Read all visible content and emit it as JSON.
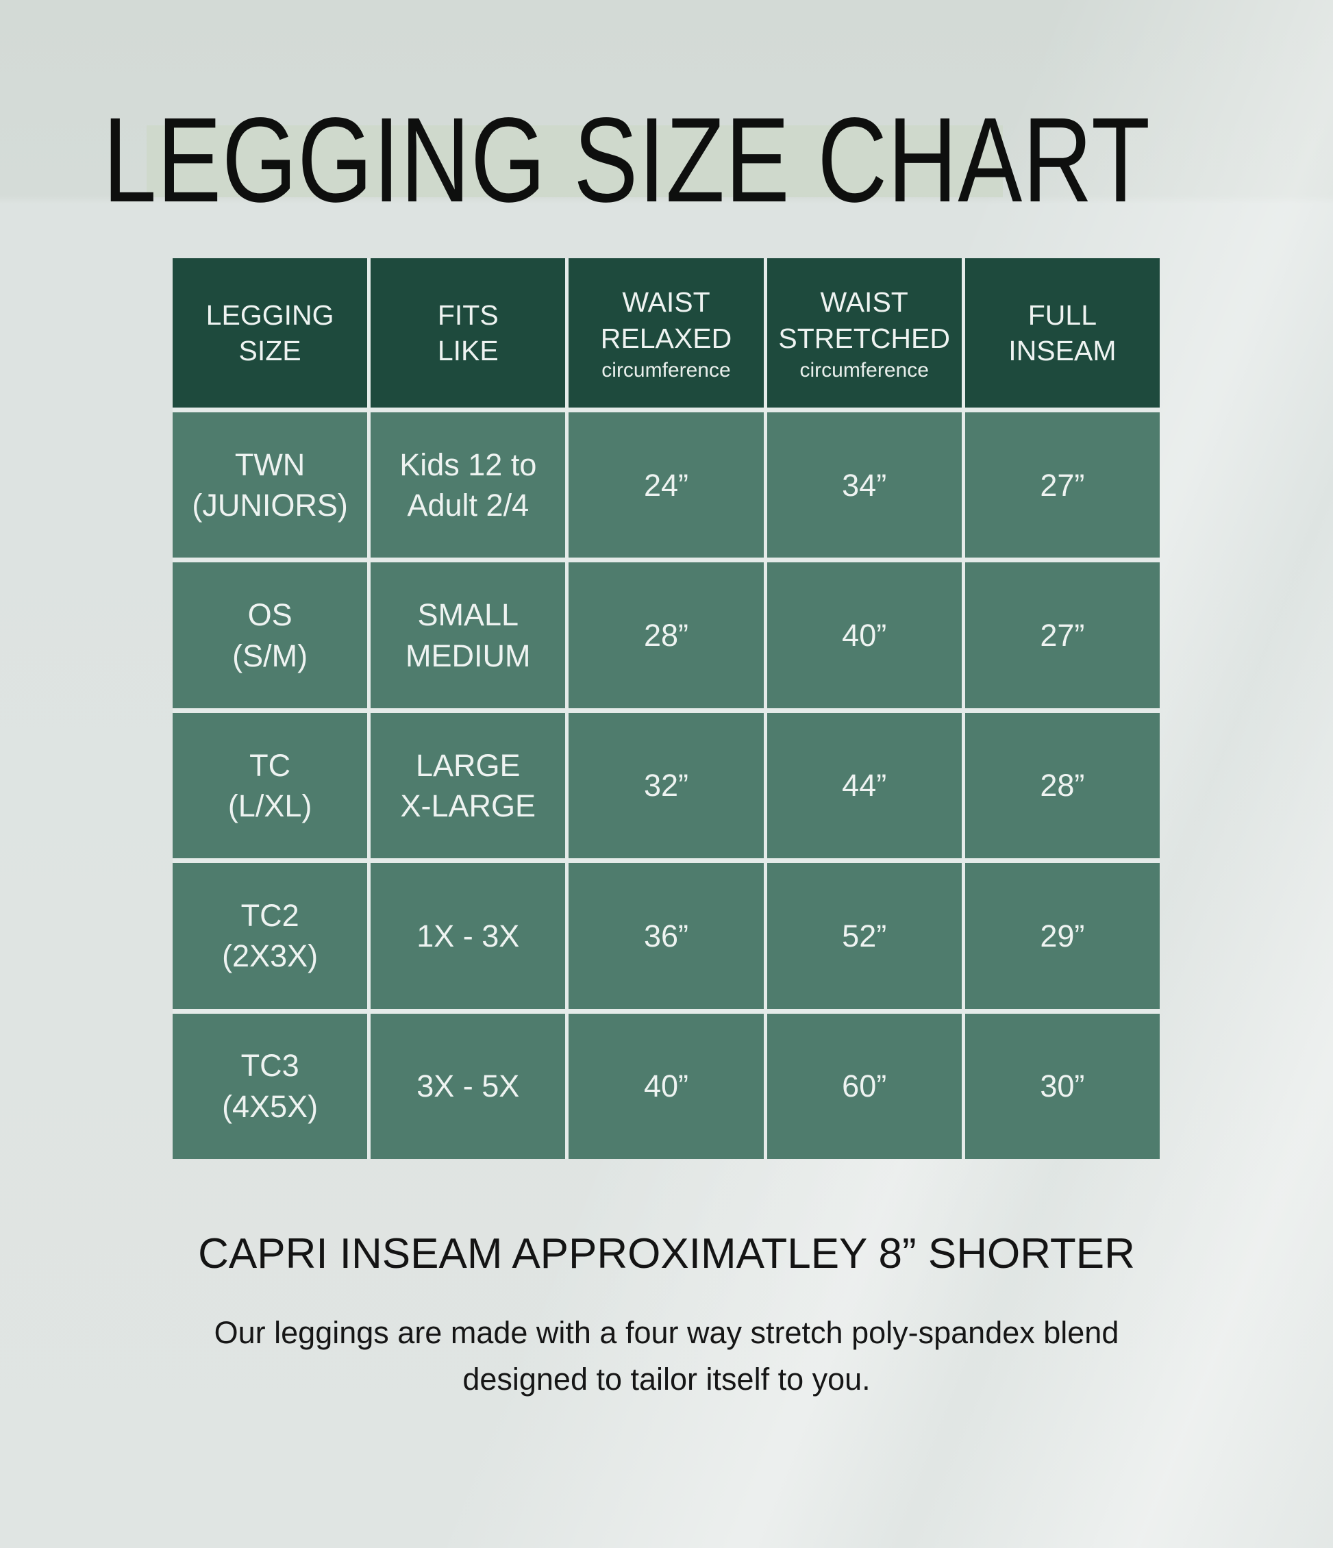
{
  "title": "LEGGING SIZE CHART",
  "colors": {
    "header_green": "#1e4a3d",
    "cell_green": "#4f7c6d",
    "grid_line": "#e5ebe9",
    "title_highlight": "#cfd9cc",
    "page_background": "#dde3e1",
    "light_text": "#eef3f1",
    "dark_text": "#141414"
  },
  "table": {
    "headers": [
      {
        "label": "LEGGING\nSIZE",
        "sub": ""
      },
      {
        "label": "FITS\nLIKE",
        "sub": ""
      },
      {
        "label": "WAIST\nRELAXED",
        "sub": "circumference"
      },
      {
        "label": "WAIST\nSTRETCHED",
        "sub": "circumference"
      },
      {
        "label": "FULL\nINSEAM",
        "sub": ""
      }
    ],
    "rows": [
      [
        "TWN\n(JUNIORS)",
        "Kids 12 to\nAdult 2/4",
        "24”",
        "34”",
        "27”"
      ],
      [
        "OS\n(S/M)",
        "SMALL\nMEDIUM",
        "28”",
        "40”",
        "27”"
      ],
      [
        "TC\n(L/XL)",
        "LARGE\nX-LARGE",
        "32”",
        "44”",
        "28”"
      ],
      [
        "TC2\n(2X3X)",
        "1X - 3X",
        "36”",
        "52”",
        "29”"
      ],
      [
        "TC3\n(4X5X)",
        "3X - 5X",
        "40”",
        "60”",
        "30”"
      ]
    ]
  },
  "notes": {
    "capri": "CAPRI INSEAM APPROXIMATLEY 8” SHORTER",
    "fabric": "Our leggings are made with a four way stretch poly-spandex blend\ndesigned to tailor itself to you."
  },
  "chart_data": {
    "type": "table",
    "title": "LEGGING SIZE CHART",
    "columns": [
      "LEGGING SIZE",
      "FITS LIKE",
      "WAIST RELAXED circumference",
      "WAIST STRETCHED circumference",
      "FULL INSEAM"
    ],
    "rows": [
      [
        "TWN (JUNIORS)",
        "Kids 12 to Adult 2/4",
        "24”",
        "34”",
        "27”"
      ],
      [
        "OS (S/M)",
        "SMALL MEDIUM",
        "28”",
        "40”",
        "27”"
      ],
      [
        "TC (L/XL)",
        "LARGE X-LARGE",
        "32”",
        "44”",
        "28”"
      ],
      [
        "TC2 (2X3X)",
        "1X - 3X",
        "36”",
        "52”",
        "29”"
      ],
      [
        "TC3 (4X5X)",
        "3X - 5X",
        "40”",
        "60”",
        "30”"
      ]
    ],
    "notes": [
      "CAPRI INSEAM APPROXIMATLEY 8” SHORTER",
      "Our leggings are made with a four way stretch poly-spandex blend designed to tailor itself to you."
    ],
    "legend_position": "none",
    "grid": true
  }
}
